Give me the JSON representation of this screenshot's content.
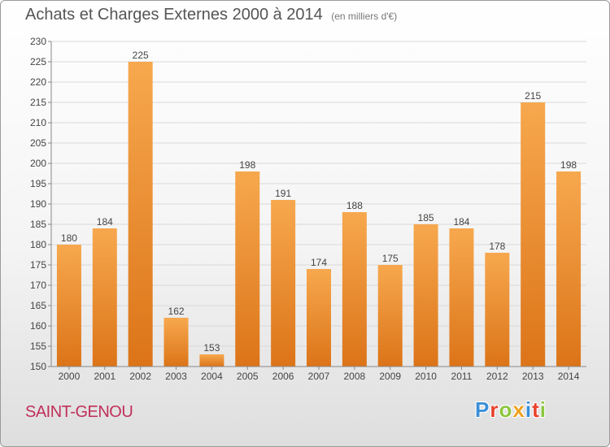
{
  "header": {
    "title": "Achats et Charges Externes 2000 à 2014",
    "unit": "(en milliers d'€)"
  },
  "footer": {
    "commune": "SAINT-GENOU",
    "logo_text": "Proxiti"
  },
  "colors": {
    "bar_light": "#f7a84e",
    "bar_dark": "#dc7418",
    "title": "#555555",
    "commune": "#c0305a",
    "logo": [
      "#3a8fd8",
      "#e8412c",
      "#8cc63f",
      "#f0a020",
      "#3a8fd8",
      "#e8412c",
      "#8cc63f"
    ]
  },
  "chart_data": {
    "type": "bar",
    "title": "Achats et Charges Externes 2000 à 2014",
    "categories": [
      "2000",
      "2001",
      "2002",
      "2003",
      "2004",
      "2005",
      "2006",
      "2007",
      "2008",
      "2009",
      "2010",
      "2011",
      "2012",
      "2013",
      "2014"
    ],
    "values": [
      180,
      184,
      225,
      162,
      153,
      198,
      191,
      174,
      188,
      175,
      185,
      184,
      178,
      215,
      198
    ],
    "ylim": [
      150,
      230
    ],
    "yticks": [
      150,
      155,
      160,
      165,
      170,
      175,
      180,
      185,
      190,
      195,
      200,
      205,
      210,
      215,
      220,
      225,
      230
    ],
    "grid": true,
    "data_labels": true
  }
}
